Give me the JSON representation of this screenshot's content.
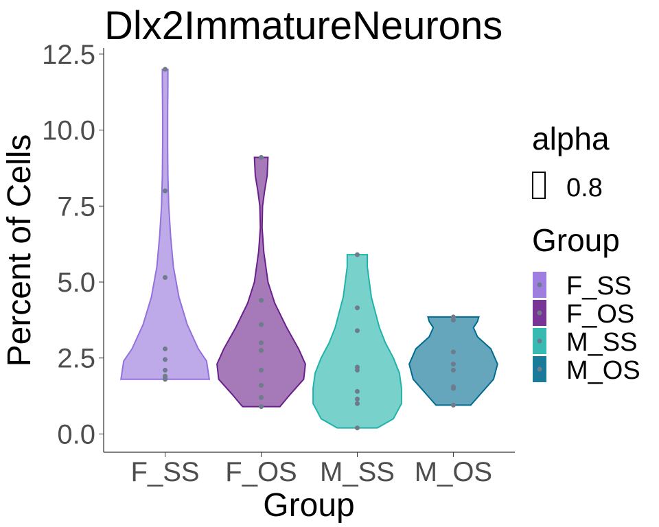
{
  "chart_data": {
    "type": "violin",
    "title": "Dlx2ImmatureNeurons",
    "xlabel": "Group",
    "ylabel": "Percent of Cells",
    "ylim": [
      -0.6,
      12.7
    ],
    "yticks": [
      0.0,
      2.5,
      5.0,
      7.5,
      10.0,
      12.5
    ],
    "ytick_labels": [
      "0.0",
      "2.5",
      "5.0",
      "7.5",
      "10.0",
      "12.5"
    ],
    "categories": [
      "F_SS",
      "F_OS",
      "M_SS",
      "M_OS"
    ],
    "series": [
      {
        "name": "F_SS",
        "color": "#9370DB",
        "points": [
          1.8,
          1.85,
          1.9,
          2.1,
          2.45,
          2.8,
          5.15,
          8.0,
          12.0
        ],
        "density": [
          [
            1.8,
            0.16
          ],
          [
            2.4,
            0.15
          ],
          [
            2.8,
            0.12
          ],
          [
            3.6,
            0.08
          ],
          [
            4.5,
            0.05
          ],
          [
            5.5,
            0.03
          ],
          [
            6.5,
            0.02
          ],
          [
            7.5,
            0.013
          ],
          [
            8.5,
            0.01
          ],
          [
            9.5,
            0.009
          ],
          [
            10.5,
            0.009
          ],
          [
            11.5,
            0.01
          ],
          [
            12.0,
            0.01
          ]
        ]
      },
      {
        "name": "F_OS",
        "color": "#6A1F8A",
        "points": [
          0.9,
          1.2,
          1.6,
          2.1,
          2.75,
          3.0,
          3.6,
          4.4,
          9.1
        ],
        "density": [
          [
            0.9,
            0.11
          ],
          [
            1.3,
            0.17
          ],
          [
            1.8,
            0.25
          ],
          [
            2.3,
            0.26
          ],
          [
            2.8,
            0.22
          ],
          [
            3.5,
            0.15
          ],
          [
            4.3,
            0.08
          ],
          [
            5.0,
            0.04
          ],
          [
            6.0,
            0.015
          ],
          [
            6.8,
            0.005
          ],
          [
            7.5,
            0.008
          ],
          [
            8.0,
            0.02
          ],
          [
            8.5,
            0.035
          ],
          [
            9.1,
            0.04
          ]
        ]
      },
      {
        "name": "M_SS",
        "color": "#20B2AA",
        "points": [
          0.2,
          1.0,
          1.15,
          1.4,
          2.1,
          2.2,
          3.4,
          4.15,
          5.9
        ],
        "density": [
          [
            0.2,
            0.1
          ],
          [
            0.5,
            0.18
          ],
          [
            1.0,
            0.22
          ],
          [
            1.5,
            0.22
          ],
          [
            2.0,
            0.21
          ],
          [
            2.5,
            0.18
          ],
          [
            3.0,
            0.14
          ],
          [
            3.5,
            0.11
          ],
          [
            4.0,
            0.09
          ],
          [
            4.5,
            0.07
          ],
          [
            5.0,
            0.06
          ],
          [
            5.5,
            0.05
          ],
          [
            5.9,
            0.05
          ]
        ]
      },
      {
        "name": "M_OS",
        "color": "#006B8F",
        "points": [
          0.95,
          1.5,
          1.55,
          2.1,
          2.3,
          2.7,
          3.75,
          3.85
        ],
        "density": [
          [
            0.95,
            0.13
          ],
          [
            1.3,
            0.2
          ],
          [
            1.8,
            0.3
          ],
          [
            2.3,
            0.33
          ],
          [
            2.8,
            0.28
          ],
          [
            3.2,
            0.18
          ],
          [
            3.5,
            0.15
          ],
          [
            3.7,
            0.18
          ],
          [
            3.85,
            0.19
          ]
        ]
      }
    ],
    "legends": [
      {
        "title": "alpha",
        "items": [
          "0.8"
        ]
      },
      {
        "title": "Group",
        "items": [
          "F_SS",
          "F_OS",
          "M_SS",
          "M_OS"
        ]
      }
    ],
    "grid": false,
    "legend_position": "right"
  }
}
